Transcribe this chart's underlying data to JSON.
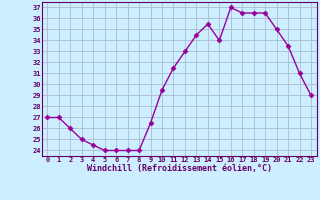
{
  "hours": [
    0,
    1,
    2,
    3,
    4,
    5,
    6,
    7,
    8,
    9,
    10,
    11,
    12,
    13,
    14,
    15,
    16,
    17,
    18,
    19,
    20,
    21,
    22,
    23
  ],
  "values": [
    27.0,
    27.0,
    26.0,
    25.0,
    24.5,
    24.0,
    24.0,
    24.0,
    24.0,
    26.5,
    29.5,
    31.5,
    33.0,
    34.5,
    35.5,
    34.0,
    37.0,
    36.5,
    36.5,
    36.5,
    35.0,
    33.5,
    31.0,
    29.0
  ],
  "line_color": "#990099",
  "marker": "D",
  "marker_size": 2.5,
  "bg_color": "#cceeff",
  "grid_color": "#aabbcc",
  "xlabel": "Windchill (Refroidissement éolien,°C)",
  "xlabel_color": "#660066",
  "tick_color": "#660066",
  "ylabel_ticks": [
    24,
    25,
    26,
    27,
    28,
    29,
    30,
    31,
    32,
    33,
    34,
    35,
    36,
    37
  ],
  "ylim": [
    23.5,
    37.5
  ],
  "xlim": [
    -0.5,
    23.5
  ]
}
